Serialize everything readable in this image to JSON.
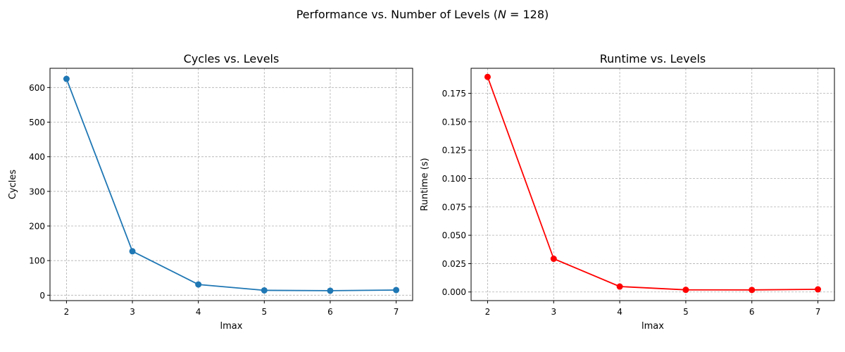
{
  "figure": {
    "suptitle_pre": "Performance vs. Number of Levels (",
    "suptitle_var": "N",
    "suptitle_post": " = 128)"
  },
  "chart_data": [
    {
      "type": "line",
      "title": "Cycles vs. Levels",
      "xlabel": "lmax",
      "ylabel": "Cycles",
      "x": [
        2,
        3,
        4,
        5,
        6,
        7
      ],
      "series": [
        {
          "name": "",
          "color": "#1f77b4",
          "marker": "circle",
          "values": [
            625,
            127,
            31,
            14,
            13,
            15
          ]
        }
      ],
      "xlim": [
        1.75,
        7.25
      ],
      "ylim": [
        -15.6,
        655.6
      ],
      "xticks": [
        2,
        3,
        4,
        5,
        6,
        7
      ],
      "yticks": [
        0,
        100,
        200,
        300,
        400,
        500,
        600
      ],
      "ytick_labels": [
        "0",
        "100",
        "200",
        "300",
        "400",
        "500",
        "600"
      ],
      "grid": true,
      "grid_style": "dashed"
    },
    {
      "type": "line",
      "title": "Runtime vs. Levels",
      "xlabel": "lmax",
      "ylabel": "Runtime (s)",
      "x": [
        2,
        3,
        4,
        5,
        6,
        7
      ],
      "series": [
        {
          "name": "",
          "color": "#ff0000",
          "marker": "circle",
          "values": [
            0.1895,
            0.0293,
            0.0048,
            0.0019,
            0.0018,
            0.0023
          ]
        }
      ],
      "xlim": [
        1.75,
        7.25
      ],
      "ylim": [
        -0.0076,
        0.1971
      ],
      "xticks": [
        2,
        3,
        4,
        5,
        6,
        7
      ],
      "yticks": [
        0,
        0.025,
        0.05,
        0.075,
        0.1,
        0.125,
        0.15,
        0.175
      ],
      "ytick_labels": [
        "0.000",
        "0.025",
        "0.050",
        "0.075",
        "0.100",
        "0.125",
        "0.150",
        "0.175"
      ],
      "grid": true,
      "grid_style": "dashed"
    }
  ]
}
